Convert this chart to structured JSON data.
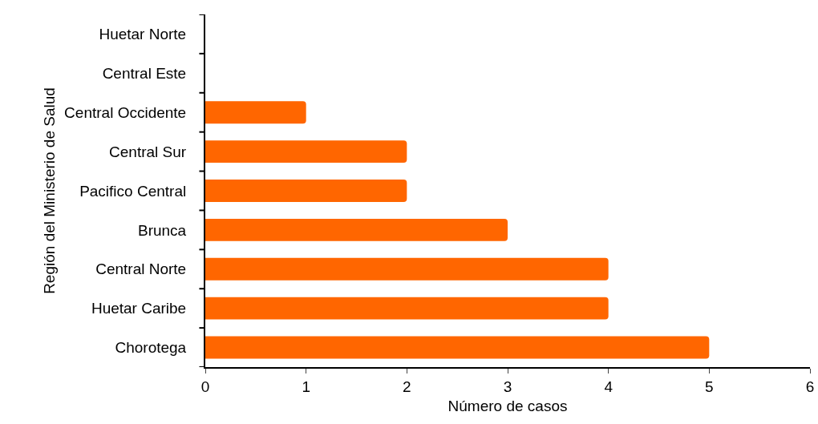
{
  "chart_data": {
    "type": "bar",
    "orientation": "horizontal",
    "xlabel": "Número de casos",
    "ylabel": "Región del Ministerio de Salud",
    "categories": [
      "Huetar Norte",
      "Central Este",
      "Central Occidente",
      "Central Sur",
      "Pacifico Central",
      "Brunca",
      "Central Norte",
      "Huetar Caribe",
      "Chorotega"
    ],
    "values": [
      0,
      0,
      1,
      2,
      2,
      3,
      4,
      4,
      5
    ],
    "color": "#ff6600",
    "xlim": [
      0,
      6
    ],
    "xticks": [
      0,
      1,
      2,
      3,
      4,
      5,
      6
    ],
    "grid": false,
    "legend": false
  }
}
